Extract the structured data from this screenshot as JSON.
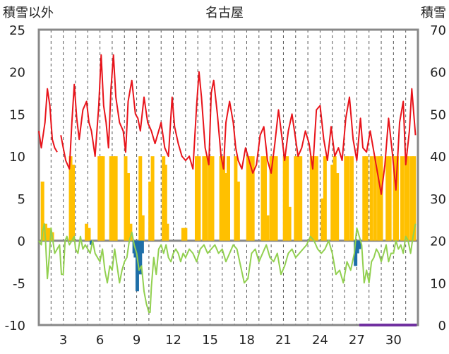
{
  "chart_data": {
    "type": "line",
    "title": "名古屋",
    "left_axis_label": "積雪以外",
    "right_axis_label": "積雪",
    "left_ylim": [
      -10,
      25
    ],
    "left_ticks": [
      25,
      20,
      15,
      10,
      5,
      0,
      -5,
      -10
    ],
    "right_ylim": [
      0,
      70
    ],
    "right_ticks": [
      70,
      60,
      50,
      40,
      30,
      20,
      10,
      0
    ],
    "x_range": [
      1,
      32
    ],
    "x_tick_labels": [
      "3",
      "6",
      "9",
      "12",
      "15",
      "18",
      "21",
      "24",
      "27",
      "30"
    ],
    "grid": "vertical dashed every day",
    "series": [
      {
        "key": "temperature",
        "axis": "left",
        "color": "#e8141b",
        "x": [
          1.0,
          1.2,
          1.5,
          1.7,
          1.9,
          2.1,
          2.3,
          2.5,
          null,
          2.8,
          3.0,
          3.2,
          3.5,
          3.7,
          3.9,
          4.1,
          4.3,
          4.6,
          4.9,
          5.1,
          5.3,
          5.6,
          5.9,
          6.1,
          6.3,
          6.5,
          6.7,
          6.9,
          7.1,
          7.3,
          7.6,
          7.9,
          8.1,
          8.3,
          8.6,
          8.9,
          9.1,
          9.3,
          9.6,
          9.9,
          10.2,
          10.5,
          10.8,
          11.0,
          11.3,
          11.6,
          11.9,
          12.1,
          12.4,
          12.7,
          13.0,
          13.3,
          13.6,
          13.9,
          14.1,
          14.3,
          14.6,
          14.9,
          15.1,
          15.3,
          15.6,
          15.9,
          16.1,
          16.3,
          16.6,
          16.9,
          17.1,
          17.3,
          17.6,
          17.9,
          18.2,
          18.5,
          18.8,
          19.1,
          19.4,
          19.7,
          20.0,
          20.3,
          20.6,
          20.9,
          21.1,
          21.4,
          21.7,
          22.0,
          22.2,
          22.5,
          22.8,
          23.1,
          23.4,
          23.7,
          24.0,
          24.3,
          24.6,
          24.9,
          25.2,
          25.5,
          25.8,
          26.1,
          26.4,
          26.7,
          27.0,
          27.3,
          27.5,
          27.8,
          28.1,
          28.4,
          28.7,
          29.0,
          29.3,
          29.6,
          29.9,
          30.2,
          30.5,
          30.8,
          31.0,
          31.3,
          31.5,
          31.8
        ],
        "y": [
          13,
          11,
          14,
          18,
          16,
          12,
          11,
          10.5,
          null,
          12.5,
          11,
          9.5,
          8.5,
          14,
          18.5,
          14.5,
          12,
          15.5,
          16.5,
          14,
          13,
          10,
          16,
          22,
          16,
          14,
          11,
          18,
          22,
          17,
          14,
          13,
          10.5,
          16.5,
          19,
          15,
          14.5,
          13,
          17,
          14,
          13,
          11.5,
          13,
          14,
          11,
          10,
          17,
          13.5,
          11.5,
          10,
          9.5,
          10,
          8.5,
          16,
          20,
          17,
          11,
          9,
          17.5,
          19,
          15,
          10,
          8.5,
          14,
          16.5,
          14,
          11,
          9.5,
          8.5,
          11,
          9.5,
          8,
          9,
          12.5,
          13.5,
          9.5,
          8,
          11.5,
          15.5,
          12,
          9.5,
          13,
          15,
          12,
          10,
          11,
          13,
          11.5,
          8.5,
          15.5,
          16,
          12,
          9.5,
          13.5,
          10,
          11,
          9.5,
          14.5,
          17,
          12,
          9.5,
          14.5,
          11,
          10.5,
          13,
          10.5,
          8,
          5.5,
          9,
          14.5,
          10.5,
          6,
          14,
          16.5,
          9,
          13,
          18,
          12.5
        ]
      },
      {
        "key": "snow_or_precip_bars",
        "axis": "left",
        "color": "#ffc000",
        "x": [
          1.3,
          1.55,
          1.8,
          2.1,
          3.6,
          3.8,
          4.9,
          5.1,
          5.95,
          6.1,
          6.25,
          6.9,
          7.1,
          7.3,
          8.1,
          8.3,
          8.5,
          9.3,
          9.5,
          10.1,
          10.3,
          11.2,
          11.35,
          11.5,
          12.8,
          13.0,
          13.9,
          14.1,
          14.5,
          14.7,
          15.0,
          15.2,
          15.9,
          16.1,
          16.3,
          16.5,
          17.1,
          17.3,
          18.1,
          18.3,
          18.5,
          19.3,
          19.5,
          19.7,
          20.0,
          20.2,
          20.4,
          21.1,
          21.3,
          21.5,
          22.0,
          22.2,
          22.4,
          23.3,
          23.5,
          23.7,
          24.2,
          24.4,
          25.0,
          25.2,
          25.4,
          26.1,
          26.3,
          26.6,
          27.6,
          27.8,
          28.2,
          28.5,
          28.8,
          29.0,
          29.5,
          29.7,
          30.1,
          30.3,
          30.7,
          31.0,
          31.2,
          31.5,
          31.7
        ],
        "y": [
          7,
          2,
          1.5,
          1,
          10,
          9,
          2,
          1.5,
          10,
          10,
          10,
          10,
          10,
          10,
          10,
          8,
          2,
          10,
          3,
          7,
          10,
          10,
          9,
          2,
          1.5,
          1.5,
          10,
          10,
          10,
          10,
          10,
          10,
          10,
          10,
          8,
          10,
          10,
          7,
          10,
          10,
          10,
          10,
          10,
          3,
          10,
          10,
          10,
          10,
          10,
          4,
          10,
          10,
          10,
          10,
          10,
          10,
          5,
          10,
          9,
          10,
          8,
          10,
          10,
          10,
          10,
          10,
          10,
          10,
          10,
          10,
          10,
          10,
          10,
          10,
          10,
          10,
          10,
          10,
          10
        ]
      },
      {
        "key": "negative_bars",
        "axis": "left",
        "color": "#1f6fa8",
        "x": [
          5.3,
          8.8,
          8.9,
          9.05,
          9.15,
          9.3,
          9.45,
          26.9,
          27.05,
          27.2
        ],
        "y": [
          -0.5,
          -1.5,
          -2,
          -6,
          -3,
          -4,
          -1.5,
          -3,
          -1.5,
          -1
        ]
      },
      {
        "key": "snow_depth",
        "axis": "right",
        "color": "#92d050",
        "x": [
          1.0,
          1.2,
          1.3,
          1.45,
          1.55,
          1.7,
          1.85,
          2.0,
          2.15,
          2.3,
          2.5,
          2.7,
          2.85,
          3.0,
          3.15,
          3.3,
          3.5,
          3.7,
          3.9,
          4.0,
          4.2,
          4.4,
          4.6,
          4.8,
          5.0,
          5.2,
          5.4,
          5.6,
          5.8,
          6.0,
          6.2,
          6.4,
          6.6,
          6.8,
          7.0,
          7.2,
          7.4,
          7.6,
          7.8,
          8.0,
          8.2,
          8.4,
          8.6,
          8.8,
          9.0,
          9.2,
          9.4,
          9.6,
          9.8,
          10.0,
          10.1,
          10.2,
          10.4,
          10.6,
          10.8,
          11.0,
          11.2,
          11.4,
          11.6,
          11.8,
          12.0,
          12.2,
          12.4,
          12.6,
          12.8,
          13.0,
          13.3,
          13.6,
          13.9,
          14.2,
          14.5,
          14.8,
          15.1,
          15.4,
          15.7,
          16.0,
          16.3,
          16.6,
          16.9,
          17.2,
          17.5,
          17.8,
          18.1,
          18.4,
          18.7,
          19.0,
          19.3,
          19.6,
          19.9,
          20.2,
          20.5,
          20.8,
          21.1,
          21.4,
          21.7,
          22.0,
          22.3,
          22.6,
          22.9,
          23.2,
          23.5,
          23.8,
          24.1,
          24.4,
          24.7,
          25.0,
          25.3,
          25.6,
          25.9,
          26.2,
          26.5,
          26.8,
          27.0,
          27.2,
          27.4,
          27.6,
          27.8,
          28.0,
          28.2,
          28.4,
          28.6,
          28.8,
          29.0,
          29.2,
          29.4,
          29.6,
          29.8,
          30.0,
          30.2,
          30.4,
          30.6,
          30.8,
          31.0,
          31.2,
          31.4,
          31.6,
          31.8
        ],
        "y": [
          20,
          19,
          22,
          24,
          20,
          11,
          16,
          23,
          20,
          17,
          18,
          19,
          12,
          12,
          20,
          21,
          19,
          20,
          21,
          18,
          17,
          21,
          18,
          19,
          18,
          17,
          20,
          17,
          16,
          15,
          18,
          13,
          10,
          14,
          13,
          18,
          14,
          10,
          13,
          15,
          16,
          20,
          22,
          19,
          17,
          13,
          14,
          8,
          5,
          3,
          3,
          9,
          16,
          12,
          18,
          19,
          17,
          19,
          16,
          15,
          17,
          18,
          17,
          15,
          17,
          16,
          18,
          17,
          15,
          18,
          19,
          17,
          18,
          19,
          17,
          18,
          15,
          17,
          19,
          18,
          14,
          10,
          11,
          17,
          18,
          15,
          17,
          19,
          16,
          15,
          17,
          12,
          14,
          17,
          18,
          16,
          17,
          18,
          19,
          21,
          20,
          18,
          17,
          18,
          20,
          17,
          12,
          13,
          10,
          15,
          13,
          17,
          23,
          21,
          19,
          10,
          13,
          10,
          15,
          16,
          18,
          17,
          15,
          17,
          19,
          15,
          17,
          17,
          20,
          18,
          19,
          17,
          21,
          20,
          17,
          21,
          24
        ]
      },
      {
        "key": "purple_baseline",
        "axis": "right",
        "color": "#7030a0",
        "x": [
          27.2,
          31.9
        ],
        "y": [
          0,
          0
        ]
      }
    ]
  }
}
